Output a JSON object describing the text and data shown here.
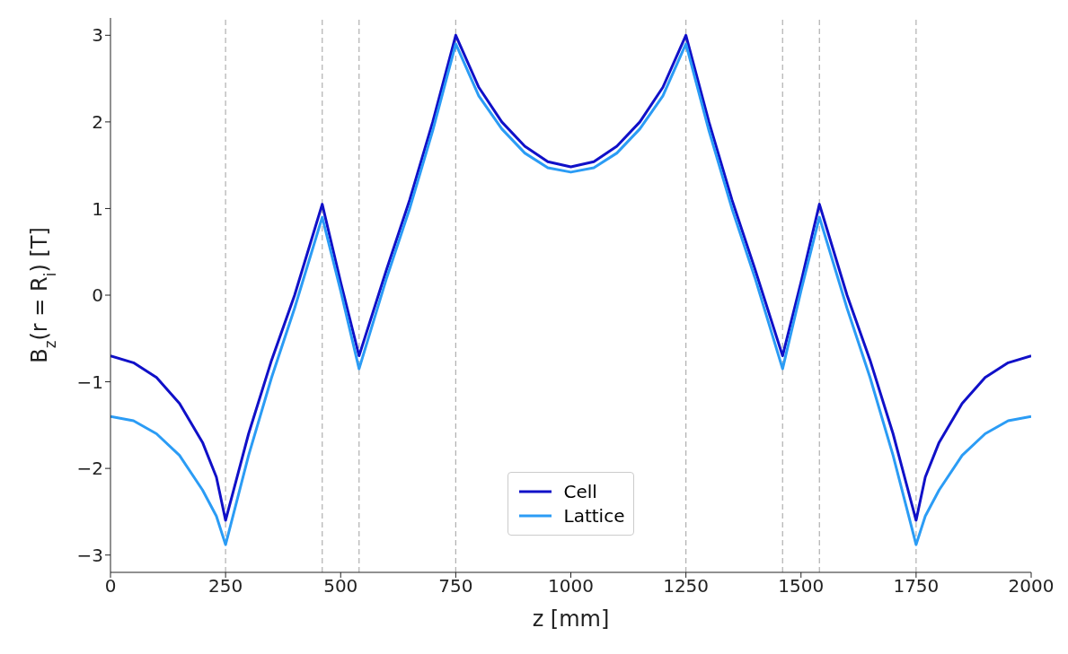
{
  "chart_data": {
    "type": "line",
    "xlabel": "z [mm]",
    "ylabel": "B$_{z}$(r = R$_{i}$) [T]",
    "x": [
      0,
      50,
      100,
      150,
      200,
      230,
      250,
      300,
      350,
      400,
      460,
      500,
      540,
      600,
      650,
      700,
      750,
      800,
      850,
      900,
      950,
      1000,
      1050,
      1100,
      1150,
      1200,
      1250,
      1300,
      1350,
      1400,
      1460,
      1500,
      1540,
      1600,
      1650,
      1700,
      1750,
      1770,
      1800,
      1850,
      1900,
      1950,
      2000
    ],
    "series": [
      {
        "name": "Cell",
        "color": "#1010c8",
        "values": [
          -0.7,
          -0.78,
          -0.95,
          -1.25,
          -1.7,
          -2.1,
          -2.6,
          -1.6,
          -0.75,
          0.0,
          1.05,
          0.15,
          -0.7,
          0.3,
          1.1,
          2.0,
          3.0,
          2.4,
          2.0,
          1.72,
          1.54,
          1.48,
          1.54,
          1.72,
          2.0,
          2.4,
          3.0,
          2.0,
          1.1,
          0.3,
          -0.7,
          0.15,
          1.05,
          0.0,
          -0.75,
          -1.6,
          -2.6,
          -2.1,
          -1.7,
          -1.25,
          -0.95,
          -0.78,
          -0.7
        ]
      },
      {
        "name": "Lattice",
        "color": "#2b9cf5",
        "values": [
          -1.4,
          -1.45,
          -1.6,
          -1.85,
          -2.25,
          -2.55,
          -2.88,
          -1.85,
          -0.95,
          -0.15,
          0.9,
          0.05,
          -0.85,
          0.2,
          1.0,
          1.9,
          2.9,
          2.3,
          1.92,
          1.64,
          1.47,
          1.42,
          1.47,
          1.64,
          1.92,
          2.3,
          2.9,
          1.9,
          1.0,
          0.2,
          -0.85,
          0.05,
          0.9,
          -0.15,
          -0.95,
          -1.85,
          -2.88,
          -2.55,
          -2.25,
          -1.85,
          -1.6,
          -1.45,
          -1.4
        ]
      }
    ],
    "xlim": [
      0,
      2000
    ],
    "xticks": [
      0,
      250,
      500,
      750,
      1000,
      1250,
      1500,
      1750,
      2000
    ],
    "ylim": [
      -3.2,
      3.2
    ],
    "yticks": [
      -3,
      -2,
      -1,
      0,
      1,
      2,
      3
    ],
    "ref_lines": [
      {
        "axis": "x",
        "value": 250,
        "color": "#b0b0b0",
        "line_style": "dashed"
      },
      {
        "axis": "x",
        "value": 460,
        "color": "#b0b0b0",
        "line_style": "dashed"
      },
      {
        "axis": "x",
        "value": 540,
        "color": "#b0b0b0",
        "line_style": "dashed"
      },
      {
        "axis": "x",
        "value": 750,
        "color": "#b0b0b0",
        "line_style": "dashed"
      },
      {
        "axis": "x",
        "value": 1250,
        "color": "#b0b0b0",
        "line_style": "dashed"
      },
      {
        "axis": "x",
        "value": 1460,
        "color": "#b0b0b0",
        "line_style": "dashed"
      },
      {
        "axis": "x",
        "value": 1540,
        "color": "#b0b0b0",
        "line_style": "dashed"
      },
      {
        "axis": "x",
        "value": 1750,
        "color": "#b0b0b0",
        "line_style": "dashed"
      }
    ],
    "grid": false,
    "legend": "bottom",
    "marker": "none",
    "line_style": "solid"
  }
}
